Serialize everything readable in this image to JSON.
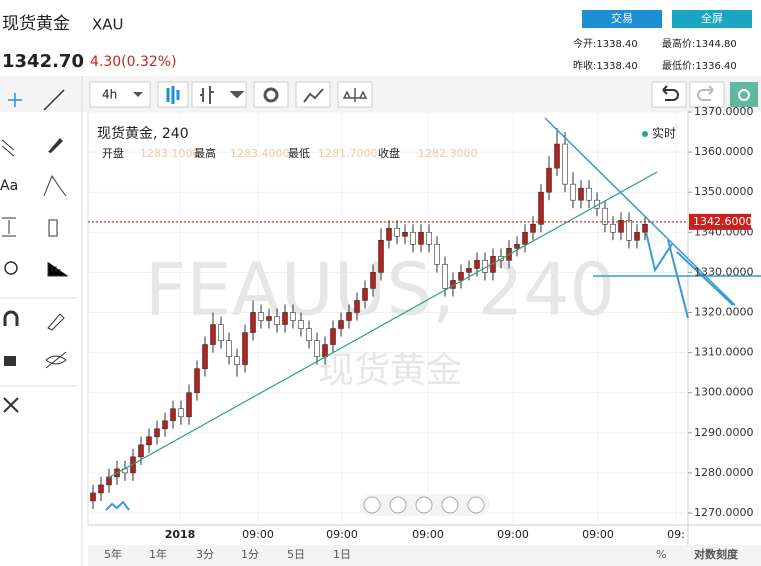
{
  "header": {
    "name": "现货黄金",
    "code": "XAU",
    "price": "1342.70",
    "change": "4.30(0.32%)",
    "buttons": [
      "交易",
      "全屏"
    ],
    "stats": [
      [
        "今开:1338.40",
        "最高价:1344.80"
      ],
      [
        "昨收:1338.40",
        "最低价:1336.40"
      ]
    ]
  },
  "toolbar": {
    "interval": "4h",
    "text_tool": "Aa"
  },
  "chart_data": {
    "type": "candlestick",
    "legend": {
      "title": "现货黄金, 240",
      "live": "实时",
      "items": [
        {
          "label": "开盘",
          "value": "1283.1000"
        },
        {
          "label": "最高",
          "value": "1283.4000"
        },
        {
          "label": "最低",
          "value": "1281.7000"
        },
        {
          "label": "收盘",
          "value": "1282.3000"
        }
      ]
    },
    "watermark": "FEAUUS, 240",
    "watermark_sub": "现货黄金",
    "up_color": "#b0231f",
    "down_color": "#ffffff",
    "open": [
      1273,
      1275,
      1277,
      1279,
      1281,
      1280,
      1284,
      1287,
      1289,
      1291,
      1293,
      1296,
      1294,
      1300,
      1306,
      1312,
      1317,
      1313,
      1309,
      1307,
      1315,
      1320,
      1318,
      1319,
      1317,
      1320,
      1318,
      1316,
      1313,
      1309,
      1312,
      1316,
      1318,
      1320,
      1323,
      1326,
      1330,
      1338,
      1341,
      1339,
      1340,
      1337,
      1340,
      1337,
      1332,
      1326,
      1328,
      1330,
      1331,
      1333,
      1330,
      1334,
      1333,
      1336,
      1337,
      1340,
      1342,
      1350,
      1356,
      1362,
      1352,
      1348,
      1351,
      1348,
      1346,
      1342,
      1340,
      1343,
      1338,
      1340
    ],
    "high": [
      1277,
      1279,
      1281,
      1283,
      1283,
      1286,
      1289,
      1291,
      1293,
      1295,
      1298,
      1298,
      1302,
      1308,
      1314,
      1320,
      1319,
      1315,
      1311,
      1317,
      1323,
      1322,
      1321,
      1321,
      1322,
      1322,
      1320,
      1318,
      1315,
      1314,
      1318,
      1320,
      1322,
      1325,
      1328,
      1332,
      1341,
      1343,
      1343,
      1342,
      1342,
      1342,
      1342,
      1339,
      1334,
      1330,
      1332,
      1333,
      1335,
      1335,
      1336,
      1336,
      1338,
      1339,
      1342,
      1344,
      1352,
      1359,
      1366,
      1365,
      1355,
      1353,
      1353,
      1350,
      1348,
      1344,
      1345,
      1345,
      1342,
      1344
    ],
    "low": [
      1271,
      1273,
      1275,
      1277,
      1278,
      1278,
      1282,
      1285,
      1287,
      1289,
      1291,
      1292,
      1292,
      1298,
      1304,
      1310,
      1311,
      1307,
      1304,
      1305,
      1313,
      1316,
      1316,
      1315,
      1315,
      1316,
      1314,
      1311,
      1307,
      1307,
      1310,
      1314,
      1316,
      1318,
      1321,
      1324,
      1328,
      1336,
      1337,
      1337,
      1335,
      1335,
      1335,
      1330,
      1324,
      1324,
      1326,
      1328,
      1329,
      1328,
      1328,
      1331,
      1331,
      1334,
      1335,
      1338,
      1340,
      1348,
      1354,
      1350,
      1346,
      1346,
      1346,
      1344,
      1340,
      1338,
      1338,
      1336,
      1336,
      1338
    ],
    "close": [
      1275,
      1277,
      1279,
      1281,
      1280,
      1284,
      1287,
      1289,
      1291,
      1293,
      1296,
      1294,
      1300,
      1306,
      1312,
      1317,
      1313,
      1309,
      1307,
      1315,
      1320,
      1318,
      1319,
      1317,
      1320,
      1318,
      1316,
      1313,
      1309,
      1312,
      1316,
      1318,
      1320,
      1323,
      1326,
      1330,
      1338,
      1341,
      1339,
      1340,
      1337,
      1340,
      1337,
      1332,
      1326,
      1328,
      1330,
      1331,
      1333,
      1330,
      1334,
      1333,
      1336,
      1337,
      1340,
      1342,
      1350,
      1356,
      1362,
      1352,
      1348,
      1351,
      1348,
      1346,
      1342,
      1340,
      1343,
      1338,
      1340,
      1342
    ],
    "ylim": [
      1267,
      1370
    ],
    "yticks": [
      {
        "value": 1270,
        "label": "1270.0000"
      },
      {
        "value": 1280,
        "label": "1280.0000"
      },
      {
        "value": 1290,
        "label": "1290.0000"
      },
      {
        "value": 1300,
        "label": "1300.0000"
      },
      {
        "value": 1310,
        "label": "1310.0000"
      },
      {
        "value": 1320,
        "label": "1320.0000"
      },
      {
        "value": 1330,
        "label": "1330.0000"
      },
      {
        "value": 1340,
        "label": "1340.0000"
      },
      {
        "value": 1350,
        "label": "1350.0000"
      },
      {
        "value": 1360,
        "label": "1360.0000"
      },
      {
        "value": 1370,
        "label": "1370.0000"
      }
    ],
    "last_price": {
      "value": 1342.6,
      "label": "1342.6000"
    },
    "xtick_labels": [
      "2018",
      "09:00",
      "09:00",
      "09:00",
      "09:00",
      "09:00",
      "09:"
    ],
    "grid": true
  },
  "footer": {
    "periods": [
      "5年",
      "1年",
      "3分",
      "1分",
      "5日",
      "1日"
    ],
    "percent": "%",
    "log": "对数刻度"
  }
}
